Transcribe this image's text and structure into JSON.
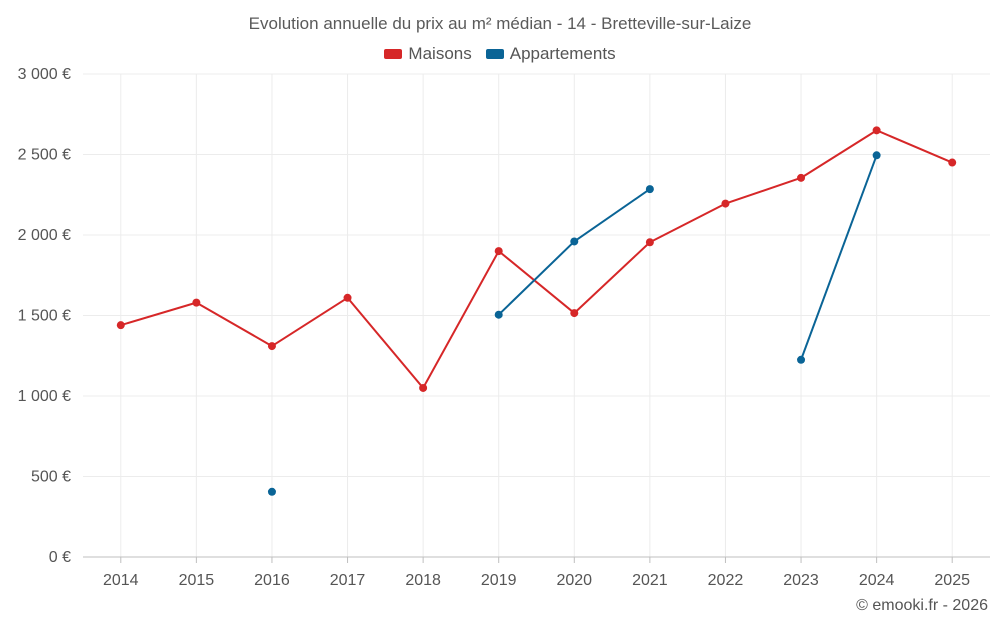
{
  "chart_data": {
    "type": "line",
    "title": "Evolution annuelle du prix au m² médian - 14 - Bretteville-sur-Laize",
    "xlabel": "",
    "ylabel": "",
    "categories": [
      "2014",
      "2015",
      "2016",
      "2017",
      "2018",
      "2019",
      "2020",
      "2021",
      "2022",
      "2023",
      "2024",
      "2025"
    ],
    "ylim": [
      0,
      3000
    ],
    "yticks": [
      0,
      500,
      1000,
      1500,
      2000,
      2500,
      3000
    ],
    "ytick_labels": [
      "0 €",
      "500 €",
      "1 000 €",
      "1 500 €",
      "2 000 €",
      "2 500 €",
      "3 000 €"
    ],
    "grid": true,
    "legend_position": "top-center",
    "series": [
      {
        "name": "Maisons",
        "color": "#d62728",
        "values": [
          1440,
          1580,
          1310,
          1610,
          1050,
          1900,
          1515,
          1955,
          2195,
          2355,
          2650,
          2450
        ]
      },
      {
        "name": "Appartements",
        "color": "#0a6496",
        "values": [
          null,
          null,
          405,
          null,
          null,
          1505,
          1960,
          2285,
          null,
          1225,
          2495,
          null
        ]
      }
    ]
  },
  "footer": {
    "copyright": "© emooki.fr - 2026"
  }
}
